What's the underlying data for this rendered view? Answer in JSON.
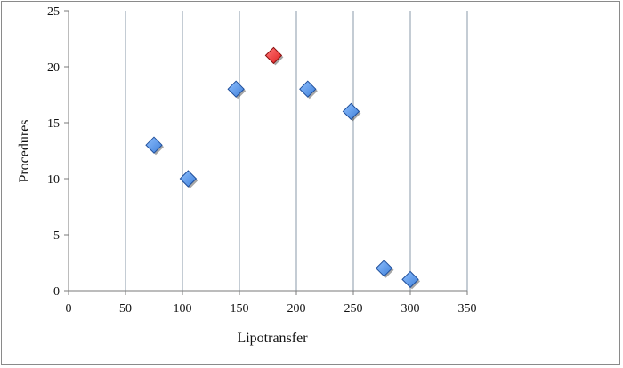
{
  "chart_data": {
    "type": "scatter",
    "title": "",
    "xlabel": "Lipotransfer",
    "ylabel": "Procedures",
    "xlim": [
      0,
      350
    ],
    "ylim": [
      0,
      25
    ],
    "xticks": [
      "0",
      "50",
      "100",
      "150",
      "200",
      "250",
      "300",
      "350"
    ],
    "yticks": [
      "0",
      "5",
      "10",
      "15",
      "20",
      "25"
    ],
    "grid": "vertical",
    "legend": "none",
    "series": [
      {
        "points": [
          {
            "x": 75,
            "y": 13
          },
          {
            "x": 105,
            "y": 10
          },
          {
            "x": 147,
            "y": 18
          },
          {
            "x": 180,
            "y": 21,
            "highlight": true
          },
          {
            "x": 210,
            "y": 18
          },
          {
            "x": 248,
            "y": 16
          },
          {
            "x": 277,
            "y": 2
          },
          {
            "x": 300,
            "y": 1
          }
        ]
      }
    ],
    "colors": {
      "marker": "#3f7fd8",
      "marker_edge": "#1f4e9a",
      "highlight": "#e02020",
      "highlight_edge": "#8a0f0f",
      "grid": "#8a9aa8",
      "axis": "#7a7a7a"
    }
  }
}
